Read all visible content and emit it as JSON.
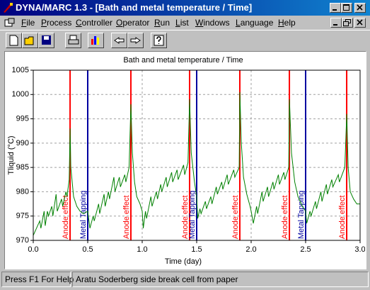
{
  "window": {
    "title": "DYNA/MARC 1.3 - [Bath and metal temperature / Time]",
    "menu": [
      "File",
      "Process",
      "Controller",
      "Operator",
      "Run",
      "List",
      "Windows",
      "Language",
      "Help"
    ],
    "status": [
      "Press F1 For Help",
      "Aratu Soderberg side break cell from paper"
    ]
  },
  "chart_data": {
    "type": "line",
    "title": "Bath and metal temperature / Time",
    "x_label": "Time (day)",
    "y_label": "Tliquid (°C)",
    "xlim": [
      0,
      3
    ],
    "xticks": [
      {
        "value": 0,
        "label": "0.0"
      },
      0.5,
      {
        "value": 1,
        "label": "1.0"
      },
      1.5,
      {
        "value": 2,
        "label": "2.0"
      },
      2.5,
      {
        "value": 3,
        "label": "3.0"
      }
    ],
    "ylim": [
      970,
      1005
    ],
    "yticks": [
      970,
      975,
      980,
      985,
      990,
      995,
      1000,
      1005
    ],
    "grid": true,
    "color": "#008000",
    "x": [
      0,
      0.06,
      0.07,
      0.1,
      0.11,
      0.13,
      0.14,
      0.17,
      0.18,
      0.21,
      0.22,
      0.26,
      0.27,
      0.3,
      0.31,
      0.33,
      0.338,
      0.345,
      0.37,
      0.4,
      0.43,
      0.46,
      0.5,
      0.52,
      0.55,
      0.56,
      0.6,
      0.61,
      0.65,
      0.66,
      0.69,
      0.7,
      0.74,
      0.75,
      0.79,
      0.8,
      0.84,
      0.85,
      0.88,
      0.896,
      0.91,
      0.93,
      0.95,
      0.98,
      1.0,
      1.01,
      1.03,
      1.04,
      1.08,
      1.09,
      1.13,
      1.14,
      1.17,
      1.18,
      1.22,
      1.23,
      1.27,
      1.28,
      1.32,
      1.33,
      1.38,
      1.39,
      1.42,
      1.435,
      1.45,
      1.48,
      1.5,
      1.51,
      1.53,
      1.54,
      1.58,
      1.59,
      1.63,
      1.64,
      1.68,
      1.69,
      1.73,
      1.74,
      1.78,
      1.79,
      1.84,
      1.85,
      1.89,
      1.896,
      1.91,
      1.93,
      1.96,
      1.99,
      2.0,
      2.02,
      2.05,
      2.06,
      2.1,
      2.11,
      2.15,
      2.16,
      2.2,
      2.21,
      2.25,
      2.26,
      2.3,
      2.31,
      2.345,
      2.351,
      2.37,
      2.4,
      2.43,
      2.47,
      2.5,
      2.51,
      2.54,
      2.55,
      2.59,
      2.6,
      2.64,
      2.65,
      2.69,
      2.7,
      2.74,
      2.75,
      2.8,
      2.81,
      2.86,
      2.877,
      2.89,
      2.91,
      2.94,
      2.97,
      3.0
    ],
    "values": [
      971,
      974,
      972.5,
      976,
      973,
      976,
      975,
      977,
      975,
      979.5,
      976,
      978.5,
      977,
      980,
      979,
      982.5,
      993,
      985,
      979,
      977,
      976,
      975.5,
      976,
      972.5,
      975,
      974,
      977.5,
      975.5,
      979.5,
      977,
      980,
      978.5,
      983,
      980,
      983,
      981,
      983.5,
      982,
      985,
      998,
      988,
      982,
      979,
      977.5,
      976,
      972.5,
      976,
      974.5,
      979,
      977,
      980,
      978.5,
      981.5,
      980,
      983,
      981,
      984,
      982,
      984.5,
      982.5,
      985.5,
      983.5,
      986,
      999,
      988,
      982,
      979,
      974.5,
      976.5,
      975.5,
      978,
      976.5,
      979,
      977.5,
      981,
      979.5,
      982,
      980.5,
      983.5,
      981.5,
      984.5,
      983,
      985,
      1000.5,
      990,
      983,
      979.5,
      977,
      976,
      973.5,
      977,
      975.5,
      980,
      978,
      981,
      979,
      982,
      980.5,
      983.5,
      981.5,
      984,
      982.5,
      985,
      999,
      988,
      982,
      979,
      977,
      976,
      973.5,
      976,
      975,
      978,
      976.5,
      980,
      978,
      981.5,
      979.5,
      982.5,
      981,
      983.5,
      982,
      985,
      996,
      985,
      980,
      978.5,
      977.5,
      977.5
    ],
    "annotations": [
      {
        "x": 0.338,
        "label": "Anode effect",
        "color": "#ff0000"
      },
      {
        "x": 0.5,
        "label": "Metal Tapping",
        "color": "#0000a0"
      },
      {
        "x": 0.896,
        "label": "Anode effect",
        "color": "#ff0000"
      },
      {
        "x": 1.435,
        "label": "Anode effect",
        "color": "#ff0000"
      },
      {
        "x": 1.5,
        "label": "Metal Tapping",
        "color": "#0000a0"
      },
      {
        "x": 1.896,
        "label": "Anode effect",
        "color": "#ff0000"
      },
      {
        "x": 2.351,
        "label": "Anode effect",
        "color": "#ff0000"
      },
      {
        "x": 2.5,
        "label": "Metal Tapping",
        "color": "#0000a0"
      },
      {
        "x": 2.877,
        "label": "Anode effect",
        "color": "#ff0000"
      }
    ]
  }
}
